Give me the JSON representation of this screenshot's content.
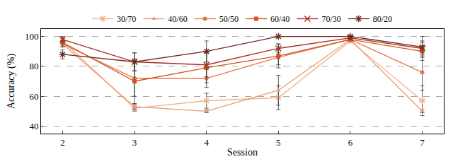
{
  "chart_data": {
    "type": "line",
    "x_label": "Session",
    "y_label": "Accuracy (%)",
    "x": [
      2,
      3,
      4,
      5,
      6,
      7
    ],
    "xlim": [
      1.7,
      7.3
    ],
    "xticks": [
      2,
      3,
      4,
      5,
      6,
      7
    ],
    "ylim": [
      35,
      105
    ],
    "yticks": [
      40,
      60,
      80,
      100
    ],
    "grid": true,
    "legend": "top",
    "series": [
      {
        "name": "30/70",
        "color": "#f3b08f",
        "marker": "asterisk-open",
        "values": [
          97,
          52,
          57,
          59,
          97,
          57
        ],
        "error": [
          2,
          2,
          5,
          8,
          1,
          10
        ]
      },
      {
        "name": "40/60",
        "color": "#e99a70",
        "marker": "triangle-up",
        "values": [
          95,
          53,
          50,
          64,
          98,
          50
        ],
        "error": [
          2,
          2,
          1,
          10,
          1,
          1
        ]
      },
      {
        "name": "50/50",
        "color": "#df7b4a",
        "marker": "circle",
        "values": [
          95,
          72,
          72,
          86,
          98,
          76
        ],
        "error": [
          2,
          12,
          6,
          5,
          1,
          12
        ]
      },
      {
        "name": "60/40",
        "color": "#d4531c",
        "marker": "square",
        "values": [
          96,
          70,
          79,
          87,
          98,
          90
        ],
        "error": [
          3,
          15,
          10,
          8,
          1,
          6
        ]
      },
      {
        "name": "70/30",
        "color": "#a82d1c",
        "marker": "x-thin-open",
        "values": [
          98,
          83,
          81,
          92,
          99,
          92
        ],
        "error": [
          2,
          6,
          8,
          3,
          1,
          5
        ]
      },
      {
        "name": "80/20",
        "color": "#6e2c22",
        "marker": "asterisk-open",
        "values": [
          88,
          83,
          90,
          100,
          100,
          93
        ],
        "error": [
          3,
          6,
          7,
          0,
          0,
          7
        ]
      }
    ]
  }
}
